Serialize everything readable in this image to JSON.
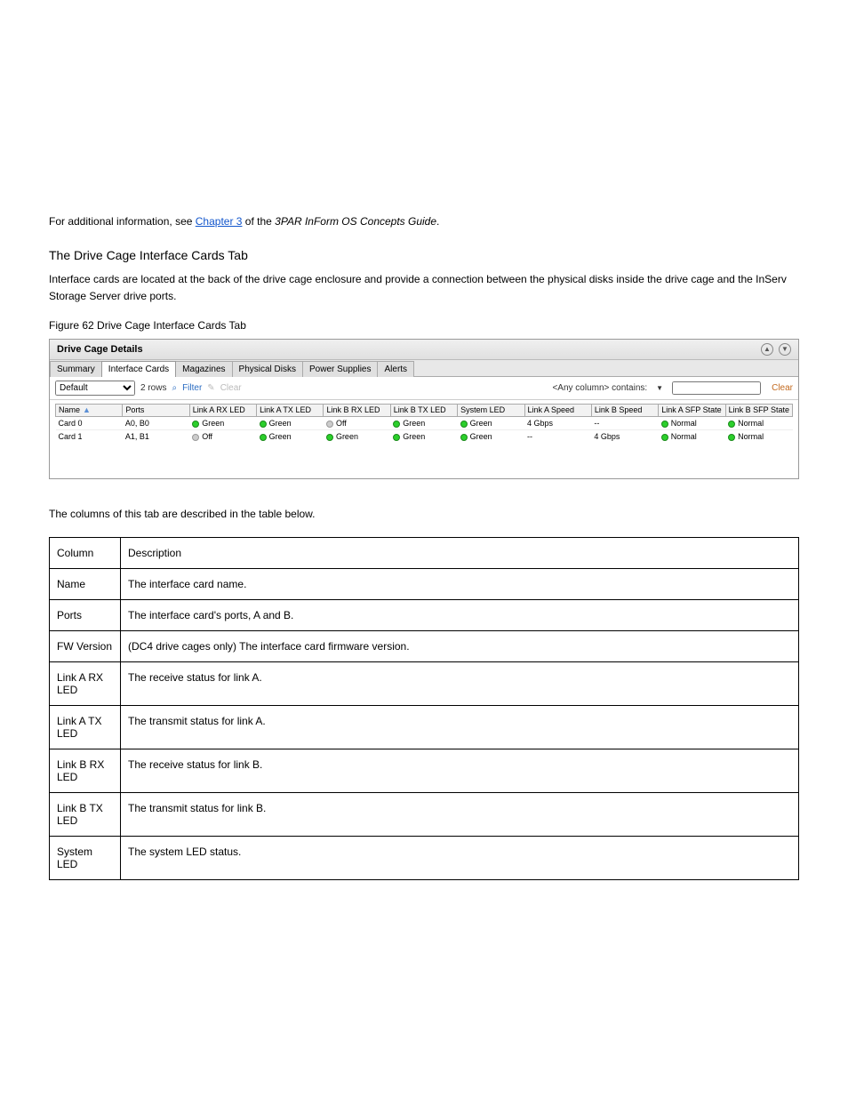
{
  "intro": {
    "line1_prefix": "For additional information, see ",
    "line1_link": "Chapter 3",
    "line1_suffix": " of the ",
    "line1_italic": "3PAR InForm OS Concepts Guide",
    "line1_end": "."
  },
  "section": {
    "title": "The Drive Cage Interface Cards Tab",
    "desc": "Interface cards are located at the back of the drive cage enclosure and provide a connection between the physical disks inside the drive cage and the InServ Storage Server drive ports."
  },
  "figure_caption": "Figure 62 Drive Cage Interface Cards Tab",
  "panel": {
    "title": "Drive Cage Details",
    "tabs": [
      "Summary",
      "Interface Cards",
      "Magazines",
      "Physical Disks",
      "Power Supplies",
      "Alerts"
    ],
    "active_tab": "Interface Cards",
    "toolbar": {
      "select_label": "Default",
      "rows_text": "2 rows",
      "filter_label": "Filter",
      "clear_label": "Clear",
      "contains_label": "<Any column> contains:",
      "clear_link": "Clear"
    },
    "columns": [
      "Name",
      "Ports",
      "Link A RX LED",
      "Link A TX LED",
      "Link B RX LED",
      "Link B TX LED",
      "System LED",
      "Link A Speed",
      "Link B Speed",
      "Link A SFP State",
      "Link B SFP State"
    ],
    "rows": [
      {
        "name": "Card 0",
        "ports": "A0, B0",
        "a_rx": {
          "txt": "Green",
          "color": "green"
        },
        "a_tx": {
          "txt": "Green",
          "color": "green"
        },
        "b_rx": {
          "txt": "Off",
          "color": "grey"
        },
        "b_tx": {
          "txt": "Green",
          "color": "green"
        },
        "sys": {
          "txt": "Green",
          "color": "green"
        },
        "a_speed": "4 Gbps",
        "b_speed": "--",
        "a_sfp": {
          "txt": "Normal",
          "color": "green"
        },
        "b_sfp": {
          "txt": "Normal",
          "color": "green"
        }
      },
      {
        "name": "Card 1",
        "ports": "A1, B1",
        "a_rx": {
          "txt": "Off",
          "color": "grey"
        },
        "a_tx": {
          "txt": "Green",
          "color": "green"
        },
        "b_rx": {
          "txt": "Green",
          "color": "green"
        },
        "b_tx": {
          "txt": "Green",
          "color": "green"
        },
        "sys": {
          "txt": "Green",
          "color": "green"
        },
        "a_speed": "--",
        "b_speed": "4 Gbps",
        "a_sfp": {
          "txt": "Normal",
          "color": "green"
        },
        "b_sfp": {
          "txt": "Normal",
          "color": "green"
        }
      }
    ]
  },
  "desc_intro": "The columns of this tab are described in the table below.",
  "desc_table": {
    "header": [
      "Column",
      "Description"
    ],
    "rows": [
      [
        "Name",
        "The interface card name."
      ],
      [
        "Ports",
        "The interface card's ports, A and B."
      ],
      [
        "FW Version",
        "(DC4 drive cages only) The interface card firmware version."
      ],
      [
        "Link A RX LED",
        "The receive status for link A."
      ],
      [
        "Link A TX LED",
        "The transmit status for link A."
      ],
      [
        "Link B RX LED",
        "The receive status for link B."
      ],
      [
        "Link B TX LED",
        "The transmit status for link B."
      ],
      [
        "System LED",
        "The system LED status."
      ]
    ]
  }
}
